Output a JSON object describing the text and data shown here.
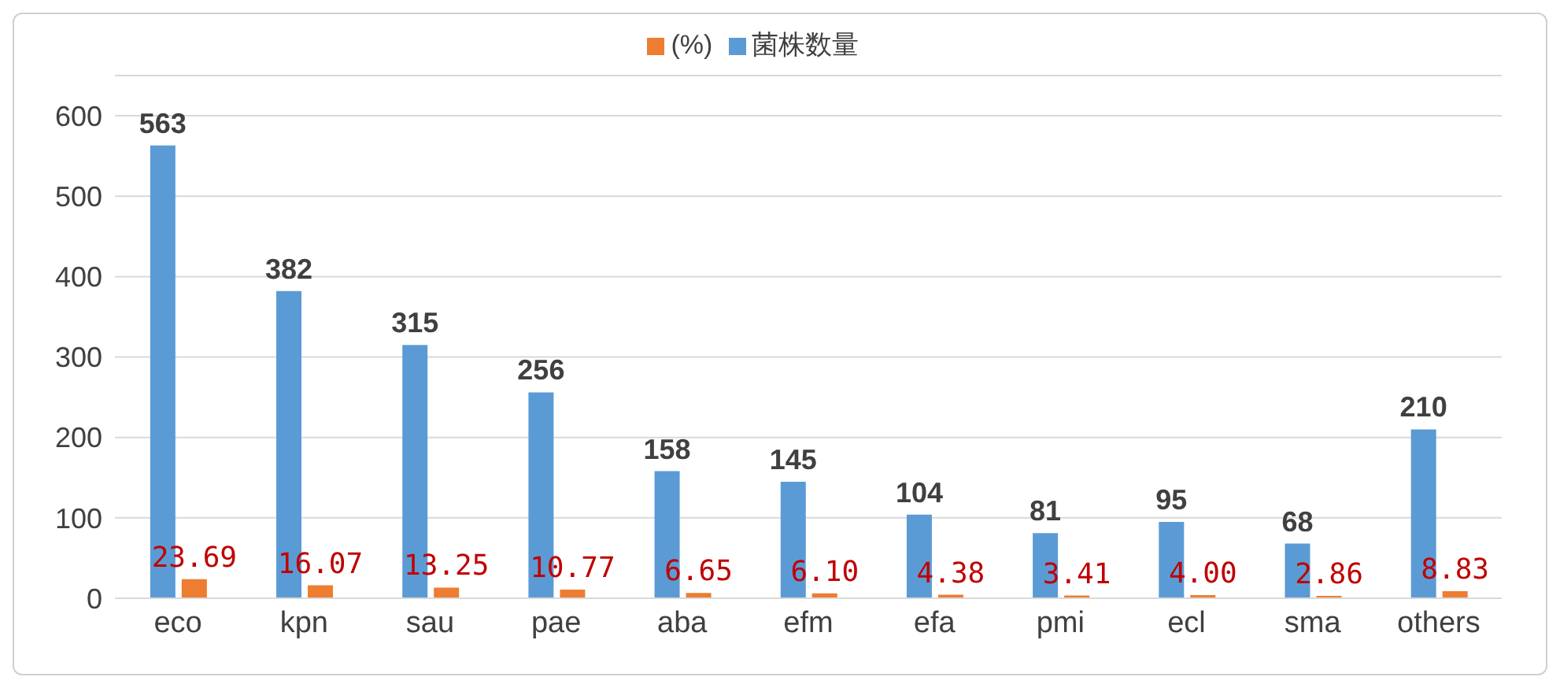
{
  "chart_data": {
    "type": "bar",
    "categories": [
      "eco",
      "kpn",
      "sau",
      "pae",
      "aba",
      "efm",
      "efa",
      "pmi",
      "ecl",
      "sma",
      "others"
    ],
    "series": [
      {
        "name": "菌株数量",
        "color": "#5b9bd5",
        "values": [
          563,
          382,
          315,
          256,
          158,
          145,
          104,
          81,
          95,
          68,
          210
        ],
        "value_labels": [
          "563",
          "382",
          "315",
          "256",
          "158",
          "145",
          "104",
          "81",
          "95",
          "68",
          "210"
        ]
      },
      {
        "name": "(%)",
        "color": "#ed7d31",
        "values": [
          23.69,
          16.07,
          13.25,
          10.77,
          6.65,
          6.1,
          4.38,
          3.41,
          4.0,
          2.86,
          8.83
        ],
        "value_labels": [
          "23.69",
          "16.07",
          "13.25",
          "10.77",
          "6.65",
          "6.10",
          "4.38",
          "3.41",
          "4.00",
          "2.86",
          "8.83"
        ]
      }
    ],
    "ylim": [
      0,
      650
    ],
    "yticks": [
      0,
      100,
      200,
      300,
      400,
      500,
      600
    ],
    "grid": "y",
    "legend": "top"
  }
}
